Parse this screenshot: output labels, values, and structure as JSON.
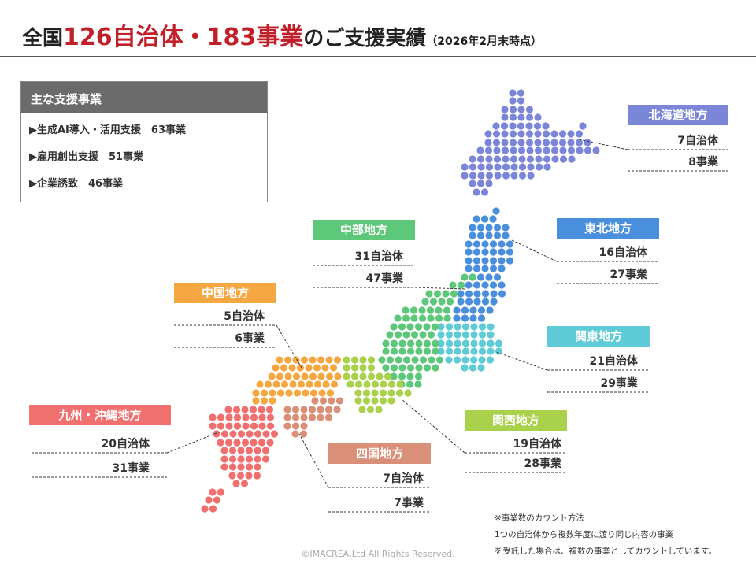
{
  "header": {
    "title_parts": [
      "全国",
      "126自治体",
      "・",
      "183事業",
      "のご支援実績"
    ],
    "as_of": "（2026年2月末時点）"
  },
  "support_box": {
    "title": "主な支援事業",
    "items": [
      "▶生成AI導入・活用支援　63事業",
      "▶雇用創出支援　51事業",
      "▶企業誘致　46事業"
    ]
  },
  "regions": [
    {
      "name": "北海道地方",
      "municipalities": "7自治体",
      "projects": "8事業",
      "color": "#7b86d9"
    },
    {
      "name": "東北地方",
      "municipalities": "16自治体",
      "projects": "27事業",
      "color": "#4a8fdc"
    },
    {
      "name": "関東地方",
      "municipalities": "21自治体",
      "projects": "29事業",
      "color": "#5ecbd6"
    },
    {
      "name": "中部地方",
      "municipalities": "31自治体",
      "projects": "47事業",
      "color": "#5ec87a"
    },
    {
      "name": "中国地方",
      "municipalities": "5自治体",
      "projects": "6事業",
      "color": "#f5a742"
    },
    {
      "name": "関西地方",
      "municipalities": "19自治体",
      "projects": "28事業",
      "color": "#a9d14c"
    },
    {
      "name": "四国地方",
      "municipalities": "7自治体",
      "projects": "7事業",
      "color": "#d98f78"
    },
    {
      "name": "九州・沖縄地方",
      "municipalities": "20自治体",
      "projects": "31事業",
      "color": "#f07070"
    }
  ],
  "notes": [
    "※事業数のカウント方法",
    "1つの自治体から複数年度に渡り同じ内容の事業",
    "を受託した場合は、複数の事業としてカウントしています。"
  ],
  "copyright": "©IMACREA,Ltd All Rights Reserved."
}
